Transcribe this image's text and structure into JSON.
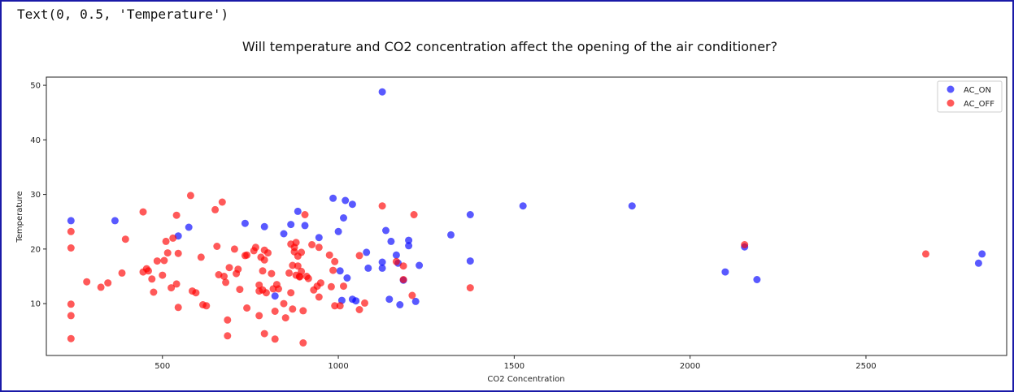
{
  "output": {
    "repr_text": "Text(0, 0.5, 'Temperature')"
  },
  "chart_data": {
    "type": "scatter",
    "title": "Will temperature and CO2 concentration affect the opening of the air conditioner?",
    "xlabel": "CO2 Concentration",
    "ylabel": "Temperature",
    "xlim": [
      170,
      2900
    ],
    "ylim": [
      0.5,
      51.5
    ],
    "xticks": [
      500,
      1000,
      1500,
      2000,
      2500
    ],
    "yticks": [
      10,
      20,
      30,
      40,
      50
    ],
    "grid": false,
    "legend_position": "top-right",
    "series": [
      {
        "name": "AC_ON",
        "color": "#0000ff",
        "points": [
          [
            240,
            25.2
          ],
          [
            365,
            25.2
          ],
          [
            545,
            22.4
          ],
          [
            575,
            24.0
          ],
          [
            735,
            24.7
          ],
          [
            790,
            24.1
          ],
          [
            820,
            11.4
          ],
          [
            845,
            22.8
          ],
          [
            865,
            24.5
          ],
          [
            885,
            26.9
          ],
          [
            905,
            24.3
          ],
          [
            945,
            22.1
          ],
          [
            985,
            29.3
          ],
          [
            1000,
            23.2
          ],
          [
            1005,
            16.0
          ],
          [
            1010,
            10.6
          ],
          [
            1015,
            25.7
          ],
          [
            1020,
            28.9
          ],
          [
            1025,
            14.7
          ],
          [
            1040,
            28.2
          ],
          [
            1040,
            10.8
          ],
          [
            1050,
            10.5
          ],
          [
            1080,
            19.4
          ],
          [
            1085,
            16.5
          ],
          [
            1125,
            48.8
          ],
          [
            1125,
            17.6
          ],
          [
            1125,
            16.5
          ],
          [
            1135,
            23.4
          ],
          [
            1145,
            10.8
          ],
          [
            1150,
            21.4
          ],
          [
            1165,
            18.9
          ],
          [
            1170,
            17.4
          ],
          [
            1175,
            9.8
          ],
          [
            1185,
            14.3
          ],
          [
            1200,
            21.6
          ],
          [
            1200,
            20.6
          ],
          [
            1220,
            10.4
          ],
          [
            1230,
            17.0
          ],
          [
            1320,
            22.6
          ],
          [
            1375,
            26.3
          ],
          [
            1375,
            17.8
          ],
          [
            1525,
            27.9
          ],
          [
            1835,
            27.9
          ],
          [
            2100,
            15.8
          ],
          [
            2155,
            20.4
          ],
          [
            2190,
            14.4
          ],
          [
            2820,
            17.4
          ],
          [
            2830,
            19.1
          ]
        ]
      },
      {
        "name": "AC_OFF",
        "color": "#ff0000",
        "points": [
          [
            240,
            23.2
          ],
          [
            240,
            20.2
          ],
          [
            240,
            9.9
          ],
          [
            240,
            7.8
          ],
          [
            240,
            3.6
          ],
          [
            285,
            14.0
          ],
          [
            325,
            13.0
          ],
          [
            345,
            13.8
          ],
          [
            385,
            15.6
          ],
          [
            395,
            21.8
          ],
          [
            445,
            26.8
          ],
          [
            445,
            15.8
          ],
          [
            455,
            16.4
          ],
          [
            460,
            16.0
          ],
          [
            470,
            14.5
          ],
          [
            475,
            12.1
          ],
          [
            485,
            17.8
          ],
          [
            500,
            15.2
          ],
          [
            505,
            17.9
          ],
          [
            510,
            21.4
          ],
          [
            515,
            19.3
          ],
          [
            525,
            12.9
          ],
          [
            530,
            22.0
          ],
          [
            540,
            26.2
          ],
          [
            540,
            13.6
          ],
          [
            545,
            9.3
          ],
          [
            545,
            19.2
          ],
          [
            580,
            29.8
          ],
          [
            585,
            12.3
          ],
          [
            595,
            12.0
          ],
          [
            610,
            18.5
          ],
          [
            615,
            9.8
          ],
          [
            625,
            9.6
          ],
          [
            650,
            27.2
          ],
          [
            655,
            20.5
          ],
          [
            660,
            15.3
          ],
          [
            670,
            28.6
          ],
          [
            675,
            15.0
          ],
          [
            680,
            13.9
          ],
          [
            685,
            7.0
          ],
          [
            685,
            4.1
          ],
          [
            690,
            16.6
          ],
          [
            705,
            20.0
          ],
          [
            710,
            15.5
          ],
          [
            715,
            16.3
          ],
          [
            720,
            12.6
          ],
          [
            735,
            18.8
          ],
          [
            740,
            18.9
          ],
          [
            740,
            9.2
          ],
          [
            760,
            19.7
          ],
          [
            765,
            20.3
          ],
          [
            775,
            13.4
          ],
          [
            775,
            12.3
          ],
          [
            775,
            7.8
          ],
          [
            780,
            18.5
          ],
          [
            785,
            16.0
          ],
          [
            785,
            12.5
          ],
          [
            790,
            19.8
          ],
          [
            790,
            18.0
          ],
          [
            790,
            4.5
          ],
          [
            795,
            12.0
          ],
          [
            800,
            19.3
          ],
          [
            810,
            15.5
          ],
          [
            815,
            12.7
          ],
          [
            820,
            8.6
          ],
          [
            820,
            3.5
          ],
          [
            825,
            13.5
          ],
          [
            830,
            12.7
          ],
          [
            845,
            10.0
          ],
          [
            850,
            7.4
          ],
          [
            860,
            15.6
          ],
          [
            865,
            20.9
          ],
          [
            865,
            12.0
          ],
          [
            870,
            17.0
          ],
          [
            870,
            9.0
          ],
          [
            875,
            20.3
          ],
          [
            875,
            19.5
          ],
          [
            880,
            21.2
          ],
          [
            880,
            15.2
          ],
          [
            885,
            18.7
          ],
          [
            885,
            16.9
          ],
          [
            890,
            15.0
          ],
          [
            890,
            14.9
          ],
          [
            895,
            19.4
          ],
          [
            895,
            15.9
          ],
          [
            900,
            8.7
          ],
          [
            900,
            2.8
          ],
          [
            905,
            26.3
          ],
          [
            910,
            15.0
          ],
          [
            915,
            14.6
          ],
          [
            925,
            20.8
          ],
          [
            930,
            12.5
          ],
          [
            940,
            13.2
          ],
          [
            945,
            11.2
          ],
          [
            945,
            20.3
          ],
          [
            950,
            13.8
          ],
          [
            975,
            18.9
          ],
          [
            980,
            13.1
          ],
          [
            985,
            16.1
          ],
          [
            990,
            17.7
          ],
          [
            990,
            9.6
          ],
          [
            1005,
            9.6
          ],
          [
            1015,
            13.2
          ],
          [
            1060,
            18.8
          ],
          [
            1060,
            8.9
          ],
          [
            1075,
            10.1
          ],
          [
            1125,
            27.9
          ],
          [
            1165,
            17.7
          ],
          [
            1185,
            14.4
          ],
          [
            1185,
            16.9
          ],
          [
            1210,
            11.5
          ],
          [
            1215,
            26.3
          ],
          [
            1375,
            12.9
          ],
          [
            2155,
            20.8
          ],
          [
            2670,
            19.1
          ]
        ]
      }
    ]
  }
}
